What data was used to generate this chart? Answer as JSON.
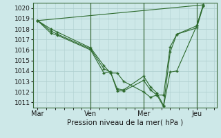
{
  "background_color": "#cde8e8",
  "grid_color": "#b0d0d0",
  "line_color": "#2d6a2d",
  "marker_color": "#2d6a2d",
  "xlabel": "Pression niveau de la mer( hPa )",
  "ylim": [
    1010.5,
    1020.5
  ],
  "yticks": [
    1011,
    1012,
    1013,
    1014,
    1015,
    1016,
    1017,
    1018,
    1019,
    1020
  ],
  "xtick_labels": [
    "Mar",
    "Ven",
    "Mer",
    "Jeu"
  ],
  "xtick_positions": [
    0,
    48,
    96,
    144
  ],
  "xlim": [
    -4,
    162
  ],
  "series": [
    {
      "x": [
        0,
        12,
        18,
        48,
        60,
        66,
        72,
        78,
        96,
        102,
        108,
        114,
        120,
        126,
        144,
        150
      ],
      "y": [
        1018.8,
        1018.0,
        1017.7,
        1016.2,
        1014.5,
        1013.8,
        1013.8,
        1013.0,
        1012.0,
        1011.5,
        1011.7,
        1011.7,
        1016.3,
        1017.5,
        1018.1,
        1020.2
      ]
    },
    {
      "x": [
        0,
        12,
        18,
        48,
        60,
        66,
        72,
        78,
        96,
        102,
        108,
        114,
        120,
        126,
        144,
        150
      ],
      "y": [
        1018.8,
        1017.8,
        1017.5,
        1016.1,
        1014.2,
        1013.9,
        1012.3,
        1012.2,
        1013.5,
        1012.5,
        1011.9,
        1010.7,
        1015.8,
        1017.5,
        1018.3,
        1020.3
      ]
    },
    {
      "x": [
        0,
        12,
        18,
        48,
        60,
        66,
        72,
        78,
        96,
        102,
        108,
        114,
        120,
        126,
        144,
        150
      ],
      "y": [
        1018.8,
        1017.6,
        1017.4,
        1016.0,
        1013.8,
        1013.9,
        1012.1,
        1012.1,
        1013.1,
        1012.2,
        1011.7,
        1010.6,
        1013.9,
        1014.0,
        1018.3,
        1020.3
      ]
    },
    {
      "x": [
        0,
        150
      ],
      "y": [
        1018.8,
        1020.3
      ],
      "no_marker": true
    }
  ],
  "vlines_x": [
    48,
    96,
    144
  ]
}
